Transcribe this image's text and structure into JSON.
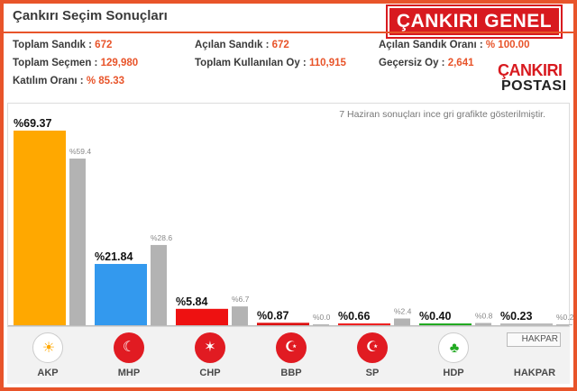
{
  "header": {
    "title": "Çankırı Seçim Sonuçları",
    "badge": "ÇANKIRI GENEL"
  },
  "stats": {
    "toplam_sandik_label": "Toplam Sandık :",
    "toplam_sandik_value": "672",
    "acilan_sandik_label": "Açılan Sandık :",
    "acilan_sandik_value": "672",
    "acilan_orani_label": "Açılan Sandık Oranı :",
    "acilan_orani_value": "% 100.00",
    "toplam_secmen_label": "Toplam Seçmen :",
    "toplam_secmen_value": "129,980",
    "kullanilan_oy_label": "Toplam Kullanılan Oy :",
    "kullanilan_oy_value": "110,915",
    "gecersiz_oy_label": "Geçersiz Oy :",
    "gecersiz_oy_value": "2,641",
    "katilim_label": "Katılım Oranı :",
    "katilim_value": "% 85.33"
  },
  "logo": {
    "line1": "ÇANKIRI",
    "line2": "POSTASI"
  },
  "chart_data": {
    "type": "bar",
    "note": "7 Haziran sonuçları ince gri grafikte gösterilmiştir.",
    "categories": [
      "AKP",
      "MHP",
      "CHP",
      "BBP",
      "SP",
      "HDP",
      "HAKPAR"
    ],
    "series": [
      {
        "values": [
          69.37,
          21.84,
          5.84,
          0.87,
          0.66,
          0.4,
          0.23
        ]
      },
      {
        "values": [
          59.4,
          28.6,
          6.7,
          0.0,
          2.4,
          0.8,
          0.2
        ]
      }
    ],
    "current_labels": [
      "%69.37",
      "%21.84",
      "%5.84",
      "%0.87",
      "%0.66",
      "%0.40",
      "%0.23"
    ],
    "previous_labels": [
      "%59.4",
      "%28.6",
      "%6.7",
      "%0.0",
      "%2.4",
      "%0.8",
      "%0.2"
    ],
    "colors": [
      "#ffa800",
      "#3399ee",
      "#ee1111",
      "#dd1111",
      "#ee2222",
      "#22aa22",
      "#bbbbbb"
    ],
    "previous_color": "#b3b3b3",
    "ylim": [
      0,
      70
    ]
  },
  "parties": [
    {
      "name": "AKP",
      "icon": "akp-bulb-icon",
      "color": "#ffffff",
      "glyph": "☀"
    },
    {
      "name": "MHP",
      "icon": "mhp-crescents-icon",
      "color": "#e11b22",
      "glyph": "☾"
    },
    {
      "name": "CHP",
      "icon": "chp-arrows-icon",
      "color": "#e11b22",
      "glyph": "✶"
    },
    {
      "name": "BBP",
      "icon": "bbp-crescent-icon",
      "color": "#e11b22",
      "glyph": "☪"
    },
    {
      "name": "SP",
      "icon": "sp-crescent-star-icon",
      "color": "#e11b22",
      "glyph": "☪"
    },
    {
      "name": "HDP",
      "icon": "hdp-tree-icon",
      "color": "#ffffff",
      "glyph": "♣"
    },
    {
      "name": "HAKPAR",
      "icon": "hakpar-broken-image-icon",
      "color": "#f2f2f2",
      "glyph": "",
      "alt": "HAKPAR"
    }
  ]
}
